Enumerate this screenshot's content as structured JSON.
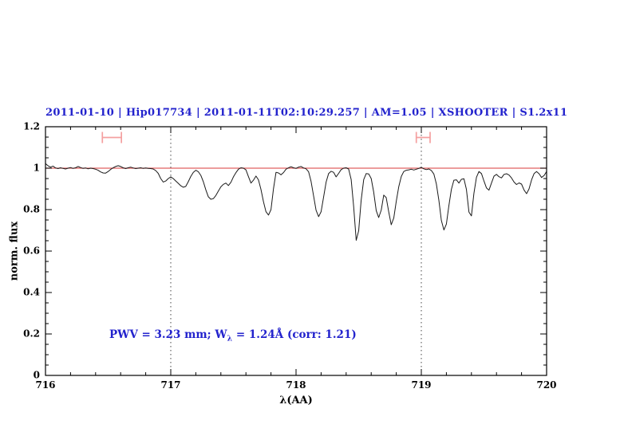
{
  "figure": {
    "title": "2011-01-10 | Hip017734 | 2011-01-11T02:10:29.257 | AM=1.05 | XSHOOTER | S1.2x11",
    "annotation": {
      "prefix": "PWV = 3.23 mm; W",
      "subscript": "λ",
      "suffix": " = 1.24Å (corr: 1.21)"
    }
  },
  "colors": {
    "accent": "#2323cd",
    "spectrum": "#1a1a1a",
    "reference": "#e06060",
    "marker": "#f4a0a0",
    "axis": "#000000",
    "dotted": "#444444"
  },
  "chart_data": {
    "type": "line",
    "title": "2011-01-10 | Hip017734 | 2011-01-11T02:10:29.257 | AM=1.05 | XSHOOTER | S1.2x11",
    "xlabel": "λ(AA)",
    "ylabel": "norm. flux",
    "annotation": "PWV = 3.23 mm; Wλ = 1.24Å (corr: 1.21)",
    "xlim": [
      716,
      720
    ],
    "ylim": [
      0,
      1.2
    ],
    "xticks": [
      716,
      717,
      718,
      719,
      720
    ],
    "xtick_labels": [
      "716",
      "717",
      "718",
      "719",
      "720"
    ],
    "x_minor_step": 0.2,
    "yticks": [
      0,
      0.2,
      0.4,
      0.6,
      0.8,
      1,
      1.2
    ],
    "ytick_labels": [
      "0",
      "0.2",
      "0.4",
      "0.6",
      "0.8",
      "1",
      "1.2"
    ],
    "y_minor_step": 0.05,
    "grid": false,
    "legend": null,
    "reference_line": {
      "y": 1.0
    },
    "dotted_vlines": [
      717,
      719
    ],
    "markers": [
      {
        "x_center": 716.53,
        "x_half_width": 0.076,
        "y": 1.148,
        "cap_half_height": 0.027
      },
      {
        "x_center": 719.015,
        "x_half_width": 0.055,
        "y": 1.148,
        "cap_half_height": 0.027
      }
    ],
    "series": [
      {
        "name": "normalized telluric spectrum",
        "points": [
          [
            716.0,
            1.022
          ],
          [
            716.02,
            1.012
          ],
          [
            716.04,
            1.005
          ],
          [
            716.06,
            1.01
          ],
          [
            716.08,
            1.001
          ],
          [
            716.1,
            0.998
          ],
          [
            716.12,
            1.002
          ],
          [
            716.14,
            0.999
          ],
          [
            716.16,
            0.996
          ],
          [
            716.18,
            1.0
          ],
          [
            716.2,
            1.003
          ],
          [
            716.22,
            0.999
          ],
          [
            716.24,
            1.002
          ],
          [
            716.26,
            1.008
          ],
          [
            716.28,
            1.003
          ],
          [
            716.3,
            0.999
          ],
          [
            716.32,
            1.001
          ],
          [
            716.34,
            0.997
          ],
          [
            716.36,
            1.0
          ],
          [
            716.38,
            0.998
          ],
          [
            716.4,
            0.995
          ],
          [
            716.42,
            0.99
          ],
          [
            716.44,
            0.982
          ],
          [
            716.46,
            0.977
          ],
          [
            716.48,
            0.976
          ],
          [
            716.5,
            0.984
          ],
          [
            716.52,
            0.994
          ],
          [
            716.54,
            1.002
          ],
          [
            716.56,
            1.008
          ],
          [
            716.58,
            1.012
          ],
          [
            716.6,
            1.008
          ],
          [
            716.62,
            1.002
          ],
          [
            716.64,
            0.998
          ],
          [
            716.66,
            1.002
          ],
          [
            716.68,
            1.005
          ],
          [
            716.7,
            1.001
          ],
          [
            716.72,
            0.998
          ],
          [
            716.74,
            1.0
          ],
          [
            716.76,
            1.002
          ],
          [
            716.78,
            0.999
          ],
          [
            716.8,
            1.001
          ],
          [
            716.82,
            0.999
          ],
          [
            716.84,
            0.998
          ],
          [
            716.86,
            0.996
          ],
          [
            716.88,
            0.988
          ],
          [
            716.9,
            0.975
          ],
          [
            716.92,
            0.95
          ],
          [
            716.94,
            0.933
          ],
          [
            716.96,
            0.938
          ],
          [
            716.98,
            0.95
          ],
          [
            717.0,
            0.958
          ],
          [
            717.02,
            0.95
          ],
          [
            717.04,
            0.938
          ],
          [
            717.06,
            0.927
          ],
          [
            717.08,
            0.915
          ],
          [
            717.1,
            0.908
          ],
          [
            717.12,
            0.912
          ],
          [
            717.14,
            0.935
          ],
          [
            717.16,
            0.96
          ],
          [
            717.18,
            0.98
          ],
          [
            717.2,
            0.99
          ],
          [
            717.22,
            0.983
          ],
          [
            717.24,
            0.965
          ],
          [
            717.26,
            0.935
          ],
          [
            717.28,
            0.895
          ],
          [
            717.3,
            0.862
          ],
          [
            717.32,
            0.85
          ],
          [
            717.34,
            0.853
          ],
          [
            717.36,
            0.868
          ],
          [
            717.38,
            0.89
          ],
          [
            717.4,
            0.91
          ],
          [
            717.42,
            0.922
          ],
          [
            717.44,
            0.928
          ],
          [
            717.46,
            0.916
          ],
          [
            717.48,
            0.932
          ],
          [
            717.5,
            0.958
          ],
          [
            717.52,
            0.978
          ],
          [
            717.54,
            0.995
          ],
          [
            717.56,
            1.002
          ],
          [
            717.58,
            1.0
          ],
          [
            717.6,
            0.992
          ],
          [
            717.62,
            0.96
          ],
          [
            717.64,
            0.928
          ],
          [
            717.66,
            0.942
          ],
          [
            717.68,
            0.962
          ],
          [
            717.7,
            0.944
          ],
          [
            717.72,
            0.898
          ],
          [
            717.74,
            0.838
          ],
          [
            717.76,
            0.79
          ],
          [
            717.78,
            0.774
          ],
          [
            717.8,
            0.8
          ],
          [
            717.82,
            0.9
          ],
          [
            717.84,
            0.98
          ],
          [
            717.86,
            0.977
          ],
          [
            717.88,
            0.968
          ],
          [
            717.9,
            0.979
          ],
          [
            717.92,
            0.995
          ],
          [
            717.94,
            1.002
          ],
          [
            717.96,
            1.007
          ],
          [
            717.98,
            1.002
          ],
          [
            718.0,
            0.999
          ],
          [
            718.02,
            1.005
          ],
          [
            718.04,
            1.008
          ],
          [
            718.06,
            1.001
          ],
          [
            718.08,
            0.997
          ],
          [
            718.1,
            0.983
          ],
          [
            718.12,
            0.937
          ],
          [
            718.14,
            0.866
          ],
          [
            718.16,
            0.797
          ],
          [
            718.18,
            0.766
          ],
          [
            718.2,
            0.79
          ],
          [
            718.22,
            0.86
          ],
          [
            718.24,
            0.933
          ],
          [
            718.26,
            0.974
          ],
          [
            718.28,
            0.985
          ],
          [
            718.3,
            0.98
          ],
          [
            718.32,
            0.958
          ],
          [
            718.34,
            0.975
          ],
          [
            718.36,
            0.993
          ],
          [
            718.38,
            1.0
          ],
          [
            718.4,
            1.002
          ],
          [
            718.42,
            0.996
          ],
          [
            718.44,
            0.945
          ],
          [
            718.46,
            0.815
          ],
          [
            718.48,
            0.652
          ],
          [
            718.5,
            0.698
          ],
          [
            718.52,
            0.845
          ],
          [
            718.54,
            0.945
          ],
          [
            718.56,
            0.974
          ],
          [
            718.58,
            0.972
          ],
          [
            718.6,
            0.95
          ],
          [
            718.62,
            0.885
          ],
          [
            718.64,
            0.795
          ],
          [
            718.66,
            0.762
          ],
          [
            718.68,
            0.798
          ],
          [
            718.7,
            0.87
          ],
          [
            718.72,
            0.858
          ],
          [
            718.74,
            0.788
          ],
          [
            718.76,
            0.727
          ],
          [
            718.78,
            0.76
          ],
          [
            718.8,
            0.84
          ],
          [
            718.82,
            0.91
          ],
          [
            718.84,
            0.96
          ],
          [
            718.86,
            0.984
          ],
          [
            718.88,
            0.99
          ],
          [
            718.9,
            0.992
          ],
          [
            718.92,
            0.995
          ],
          [
            718.94,
            0.991
          ],
          [
            718.96,
            0.995
          ],
          [
            718.98,
            0.999
          ],
          [
            719.0,
            1.004
          ],
          [
            719.02,
            0.997
          ],
          [
            719.04,
            0.993
          ],
          [
            719.06,
            0.996
          ],
          [
            719.08,
            0.989
          ],
          [
            719.1,
            0.972
          ],
          [
            719.12,
            0.925
          ],
          [
            719.14,
            0.845
          ],
          [
            719.16,
            0.748
          ],
          [
            719.18,
            0.702
          ],
          [
            719.2,
            0.73
          ],
          [
            719.22,
            0.818
          ],
          [
            719.24,
            0.898
          ],
          [
            719.26,
            0.942
          ],
          [
            719.28,
            0.944
          ],
          [
            719.3,
            0.928
          ],
          [
            719.32,
            0.946
          ],
          [
            719.34,
            0.949
          ],
          [
            719.36,
            0.898
          ],
          [
            719.38,
            0.788
          ],
          [
            719.4,
            0.77
          ],
          [
            719.42,
            0.878
          ],
          [
            719.44,
            0.956
          ],
          [
            719.46,
            0.984
          ],
          [
            719.48,
            0.974
          ],
          [
            719.5,
            0.938
          ],
          [
            719.52,
            0.905
          ],
          [
            719.54,
            0.894
          ],
          [
            719.56,
            0.928
          ],
          [
            719.58,
            0.962
          ],
          [
            719.6,
            0.97
          ],
          [
            719.62,
            0.959
          ],
          [
            719.64,
            0.953
          ],
          [
            719.66,
            0.97
          ],
          [
            719.68,
            0.973
          ],
          [
            719.7,
            0.967
          ],
          [
            719.72,
            0.953
          ],
          [
            719.74,
            0.933
          ],
          [
            719.76,
            0.921
          ],
          [
            719.78,
            0.929
          ],
          [
            719.8,
            0.923
          ],
          [
            719.82,
            0.895
          ],
          [
            719.84,
            0.877
          ],
          [
            719.86,
            0.9
          ],
          [
            719.88,
            0.944
          ],
          [
            719.9,
            0.974
          ],
          [
            719.92,
            0.984
          ],
          [
            719.94,
            0.973
          ],
          [
            719.96,
            0.955
          ],
          [
            719.98,
            0.965
          ],
          [
            720.0,
            0.984
          ]
        ]
      }
    ]
  }
}
